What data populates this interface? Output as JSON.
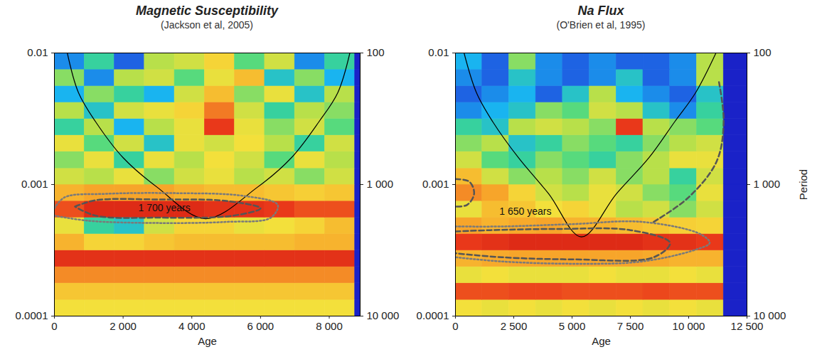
{
  "chart_data": [
    {
      "type": "heatmap",
      "title": "Magnetic Susceptibility",
      "subtitle": "(Jackson et al, 2005)",
      "xlabel": "Age",
      "log": "y",
      "grid": false,
      "xlim": [
        0,
        8900
      ],
      "xticks": [
        0,
        {
          "value": 2000,
          "label": "2 000"
        },
        {
          "value": 4000,
          "label": "4 000"
        },
        {
          "value": 6000,
          "label": "6 000"
        },
        {
          "value": 8000,
          "label": "8 000"
        }
      ],
      "ylim": [
        0.0001,
        0.01
      ],
      "yticks": [
        0.0001,
        0.001,
        0.01
      ],
      "y2lim": [
        10000,
        100
      ],
      "y2ticks": [
        100,
        {
          "value": 1000,
          "label": "1 000"
        },
        {
          "value": 10000,
          "label": "10 000"
        }
      ],
      "zlim": [
        0,
        1
      ],
      "cells": {
        "x_edges": [
          0,
          875,
          1750,
          2625,
          3500,
          4375,
          5250,
          6125,
          7000,
          7875,
          8750,
          8900
        ],
        "y_edges": [
          0.0001,
          0.000133,
          0.000178,
          0.000237,
          0.000316,
          0.000422,
          0.000562,
          0.00075,
          0.001,
          0.00133,
          0.00178,
          0.00237,
          0.00316,
          0.00422,
          0.00562,
          0.0075,
          0.01
        ],
        "values": [
          [
            0.62,
            0.62,
            0.62,
            0.62,
            0.62,
            0.62,
            0.62,
            0.62,
            0.62,
            0.62,
            0
          ],
          [
            0.68,
            0.68,
            0.68,
            0.68,
            0.68,
            0.68,
            0.68,
            0.68,
            0.68,
            0.68,
            0
          ],
          [
            0.78,
            0.78,
            0.78,
            0.78,
            0.78,
            0.78,
            0.78,
            0.78,
            0.78,
            0.78,
            0
          ],
          [
            0.9,
            0.9,
            0.9,
            0.9,
            0.9,
            0.9,
            0.9,
            0.9,
            0.9,
            0.9,
            0
          ],
          [
            0.72,
            0.65,
            0.65,
            0.68,
            0.7,
            0.7,
            0.7,
            0.7,
            0.72,
            0.72,
            0
          ],
          [
            0.6,
            0.35,
            0.3,
            0.55,
            0.65,
            0.65,
            0.6,
            0.62,
            0.65,
            0.7,
            0
          ],
          [
            0.85,
            0.92,
            0.92,
            0.92,
            0.92,
            0.9,
            0.9,
            0.88,
            0.85,
            0.85,
            0
          ],
          [
            0.72,
            0.75,
            0.75,
            0.75,
            0.72,
            0.7,
            0.7,
            0.68,
            0.66,
            0.68,
            0
          ],
          [
            0.55,
            0.5,
            0.6,
            0.45,
            0.55,
            0.6,
            0.5,
            0.55,
            0.45,
            0.55,
            0
          ],
          [
            0.45,
            0.6,
            0.35,
            0.6,
            0.5,
            0.62,
            0.55,
            0.4,
            0.6,
            0.5,
            0
          ],
          [
            0.6,
            0.4,
            0.55,
            0.3,
            0.6,
            0.55,
            0.62,
            0.5,
            0.35,
            0.55,
            0
          ],
          [
            0.35,
            0.5,
            0.25,
            0.5,
            0.6,
            0.88,
            0.6,
            0.45,
            0.55,
            0.4,
            0
          ],
          [
            0.5,
            0.3,
            0.55,
            0.6,
            0.65,
            0.8,
            0.55,
            0.35,
            0.5,
            0.45,
            0
          ],
          [
            0.25,
            0.45,
            0.35,
            0.25,
            0.55,
            0.7,
            0.45,
            0.6,
            0.3,
            0.5,
            0
          ],
          [
            0.45,
            0.2,
            0.5,
            0.55,
            0.4,
            0.6,
            0.7,
            0.3,
            0.45,
            0.25,
            0
          ],
          [
            0.2,
            0.35,
            0.15,
            0.5,
            0.55,
            0.65,
            0.4,
            0.55,
            0.2,
            0.35,
            0
          ]
        ]
      },
      "lines": [
        {
          "color": "#000000",
          "line_style": "solid",
          "x": [
            376,
            700,
            1200,
            2000,
            3000,
            4400,
            5900,
            6900,
            7700,
            8250,
            8600
          ],
          "y": [
            0.01,
            0.005,
            0.003,
            0.0016,
            0.00095,
            0.00055,
            0.00095,
            0.0016,
            0.003,
            0.005,
            0.01
          ]
        },
        {
          "color": "#7a7a7a",
          "line_style": "dotted",
          "x": [
            0,
            300,
            1500,
            3500,
            5500,
            6500,
            6300,
            5000,
            3000,
            1000,
            0
          ],
          "y": [
            0.00066,
            0.0008,
            0.00085,
            0.00086,
            0.00082,
            0.0007,
            0.00056,
            0.00052,
            0.00051,
            0.00053,
            0.00058
          ]
        },
        {
          "color": "#555555",
          "line_style": "dashed",
          "x": [
            600,
            1200,
            3000,
            5000,
            6000,
            5200,
            3000,
            1200,
            600
          ],
          "y": [
            0.00068,
            0.00076,
            0.00077,
            0.00075,
            0.00066,
            0.00058,
            0.00056,
            0.00058,
            0.00068
          ]
        }
      ],
      "annotations": [
        {
          "text": "1 700 years",
          "x": 3200,
          "y": 0.00066
        }
      ]
    },
    {
      "type": "heatmap",
      "title": "Na Flux",
      "subtitle": "(O'Brien et al, 1995)",
      "xlabel": "Age",
      "y2label": "Period",
      "log": "y",
      "grid": false,
      "xlim": [
        0,
        12500
      ],
      "xticks": [
        0,
        {
          "value": 2500,
          "label": "2 500"
        },
        {
          "value": 5000,
          "label": "5 000"
        },
        {
          "value": 7500,
          "label": "7 500"
        },
        {
          "value": 10000,
          "label": "10 000"
        },
        {
          "value": 12500,
          "label": "12 500"
        }
      ],
      "ylim": [
        0.0001,
        0.01
      ],
      "yticks": [
        0.0001,
        0.001,
        0.01
      ],
      "y2lim": [
        10000,
        100
      ],
      "y2ticks": [
        100,
        {
          "value": 1000,
          "label": "1 000"
        },
        {
          "value": 10000,
          "label": "10 000"
        }
      ],
      "zlim": [
        0,
        1
      ],
      "cells": {
        "x_edges": [
          0,
          1150,
          2300,
          3450,
          4600,
          5750,
          6900,
          8050,
          9200,
          10350,
          11500,
          12500
        ],
        "y_edges": [
          0.0001,
          0.000133,
          0.000178,
          0.000237,
          0.000316,
          0.000422,
          0.000562,
          0.00075,
          0.001,
          0.00133,
          0.00178,
          0.00237,
          0.00316,
          0.00422,
          0.00562,
          0.0075,
          0.01
        ],
        "values": [
          [
            0.62,
            0.6,
            0.62,
            0.6,
            0.62,
            0.6,
            0.62,
            0.6,
            0.62,
            0.6,
            0
          ],
          [
            0.85,
            0.85,
            0.86,
            0.86,
            0.85,
            0.85,
            0.85,
            0.86,
            0.85,
            0.85,
            0
          ],
          [
            0.6,
            0.62,
            0.6,
            0.6,
            0.6,
            0.62,
            0.6,
            0.6,
            0.62,
            0.6,
            0
          ],
          [
            0.72,
            0.74,
            0.75,
            0.75,
            0.75,
            0.75,
            0.75,
            0.74,
            0.72,
            0.72,
            0
          ],
          [
            0.88,
            0.9,
            0.92,
            0.92,
            0.92,
            0.92,
            0.92,
            0.9,
            0.9,
            0.88,
            0
          ],
          [
            0.75,
            0.72,
            0.74,
            0.75,
            0.72,
            0.72,
            0.7,
            0.68,
            0.66,
            0.65,
            0
          ],
          [
            0.6,
            0.7,
            0.68,
            0.62,
            0.65,
            0.6,
            0.5,
            0.55,
            0.45,
            0.55,
            0
          ],
          [
            0.78,
            0.75,
            0.65,
            0.55,
            0.5,
            0.6,
            0.55,
            0.45,
            0.4,
            0.6,
            0
          ],
          [
            0.7,
            0.55,
            0.45,
            0.5,
            0.45,
            0.55,
            0.45,
            0.5,
            0.35,
            0.55,
            0
          ],
          [
            0.55,
            0.4,
            0.35,
            0.45,
            0.4,
            0.35,
            0.45,
            0.5,
            0.6,
            0.6,
            0
          ],
          [
            0.45,
            0.5,
            0.3,
            0.35,
            0.45,
            0.4,
            0.35,
            0.45,
            0.5,
            0.55,
            0
          ],
          [
            0.35,
            0.3,
            0.5,
            0.55,
            0.5,
            0.45,
            0.88,
            0.5,
            0.45,
            0.4,
            0
          ],
          [
            0.2,
            0.25,
            0.3,
            0.45,
            0.4,
            0.55,
            0.5,
            0.3,
            0.2,
            0.35,
            0
          ],
          [
            0.15,
            0.2,
            0.25,
            0.15,
            0.3,
            0.5,
            0.25,
            0.2,
            0.15,
            0.3,
            0
          ],
          [
            0.2,
            0.15,
            0.3,
            0.2,
            0.15,
            0.2,
            0.3,
            0.15,
            0.2,
            0.5,
            0
          ],
          [
            0.25,
            0.15,
            0.45,
            0.2,
            0.15,
            0.2,
            0.15,
            0.15,
            0.2,
            0.5,
            0
          ]
        ]
      },
      "lines": [
        {
          "color": "#000000",
          "line_style": "solid",
          "x": [
            370,
            900,
            1600,
            2700,
            4000,
            5400,
            6900,
            8300,
            9400,
            10300,
            11170
          ],
          "y": [
            0.01,
            0.005,
            0.003,
            0.0016,
            0.00085,
            0.0004,
            0.00085,
            0.0016,
            0.003,
            0.005,
            0.01
          ]
        },
        {
          "color": "#7a7a7a",
          "line_style": "dotted",
          "x": [
            0,
            2000,
            5000,
            8000,
            10500,
            10900,
            10300,
            8000,
            5000,
            2000,
            0
          ],
          "y": [
            0.00048,
            0.00048,
            0.0005,
            0.00052,
            0.00042,
            0.00036,
            0.00032,
            0.00026,
            0.00025,
            0.00026,
            0.00028
          ]
        },
        {
          "color": "#555555",
          "line_style": "dashed",
          "x": [
            0,
            1500,
            4500,
            7500,
            9200,
            8500,
            5000,
            2000,
            0
          ],
          "y": [
            0.00044,
            0.00045,
            0.00046,
            0.00045,
            0.00036,
            0.00028,
            0.00027,
            0.00028,
            0.0003
          ]
        },
        {
          "color": "#555555",
          "line_style": "dashed",
          "x": [
            0,
            600,
            800,
            500,
            0
          ],
          "y": [
            0.0011,
            0.00105,
            0.00085,
            0.0007,
            0.00068
          ]
        },
        {
          "color": "#555555",
          "line_style": "dashed",
          "x": [
            8500,
            10000,
            11200,
            11500,
            11300
          ],
          "y": [
            0.00052,
            0.0008,
            0.0015,
            0.003,
            0.006
          ]
        }
      ],
      "annotations": [
        {
          "text": "1 650 years",
          "x": 3000,
          "y": 0.00062
        }
      ]
    }
  ]
}
